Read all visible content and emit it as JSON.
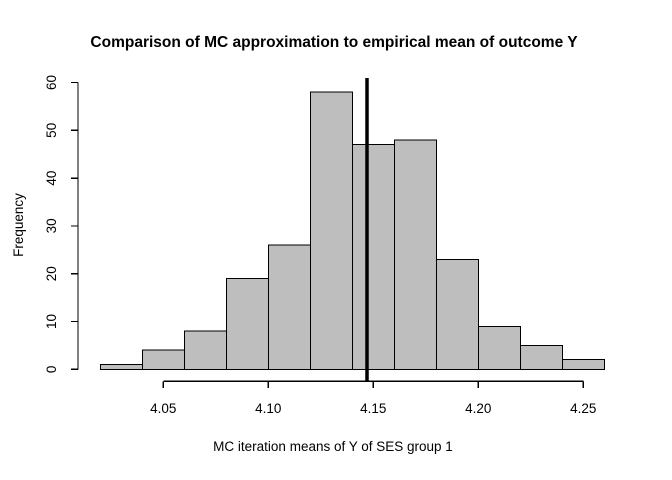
{
  "chart_data": {
    "type": "bar",
    "variant": "histogram",
    "title": "Comparison of MC approximation to empirical mean of outcome Y",
    "xlabel": "MC iteration means of Y of SES group 1",
    "ylabel": "Frequency",
    "bin_start": 4.02,
    "bin_width": 0.02,
    "bin_edges": [
      4.02,
      4.04,
      4.06,
      4.08,
      4.1,
      4.12,
      4.14,
      4.16,
      4.18,
      4.2,
      4.22,
      4.24,
      4.26
    ],
    "frequencies": [
      1,
      4,
      8,
      19,
      26,
      58,
      47,
      48,
      23,
      9,
      5,
      2
    ],
    "x_tick_values": [
      4.05,
      4.1,
      4.15,
      4.2,
      4.25
    ],
    "x_tick_labels": [
      "4.05",
      "4.10",
      "4.15",
      "4.20",
      "4.25"
    ],
    "y_tick_values": [
      0,
      10,
      20,
      30,
      40,
      50,
      60
    ],
    "y_tick_labels": [
      "0",
      "10",
      "20",
      "30",
      "40",
      "50",
      "60"
    ],
    "xlim": [
      4.05,
      4.25
    ],
    "ylim": [
      0,
      60
    ],
    "vline_x": 4.147,
    "grid": false,
    "legend_position": "none",
    "colors": {
      "bar_fill": "#bebebe",
      "bar_border": "#000000",
      "axis": "#000000",
      "text": "#000000",
      "vline": "#000000",
      "background": "#ffffff"
    }
  }
}
